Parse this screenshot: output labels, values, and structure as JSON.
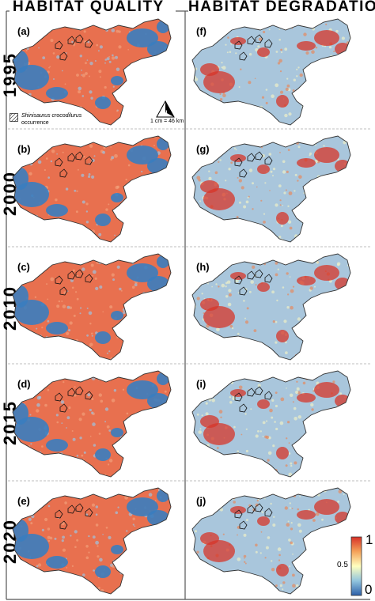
{
  "headers": {
    "left": "HABITAT QUALITY",
    "right": "HABITAT DEGRADATION"
  },
  "years": [
    "1995",
    "2000",
    "2010",
    "2015",
    "2020"
  ],
  "panels_left": [
    "(a)",
    "(b)",
    "(c)",
    "(d)",
    "(e)"
  ],
  "panels_right": [
    "(f)",
    "(g)",
    "(h)",
    "(i)",
    "(j)"
  ],
  "legend": {
    "species": "Shinisaurus crocodilurus",
    "occurrence": "occurrence"
  },
  "scale": "1 cm = 46 km",
  "colorbar": {
    "max": "1",
    "mid": "0.5",
    "min": "0",
    "top_color": "#d73027",
    "mid_color": "#ffffbf",
    "bottom_color": "#2c5fa8"
  },
  "colors": {
    "quality_high": "#e8704f",
    "quality_low": "#3a7dbf",
    "degradation_low": "#a9c6dc",
    "degradation_high": "#d7352a",
    "outline": "#333333"
  }
}
